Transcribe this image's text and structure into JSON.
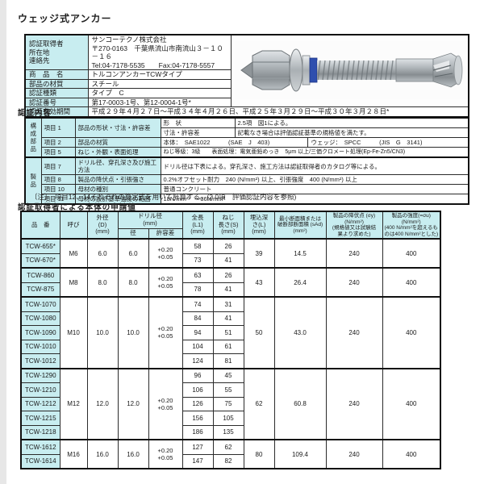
{
  "page_title": "ウェッジ式アンカー",
  "colors": {
    "accent_cyan": "#c8edf0",
    "border": "#2b2b2b"
  },
  "header_table": {
    "holder": {
      "labels": [
        "認証取得者",
        "所在地",
        "連絡先"
      ],
      "values": [
        "サンコーテクノ株式会社",
        "〒270-0163　千葉県流山市南流山３－１０－１６",
        "Tel:04-7178-5535　　Fax:04-7178-5557"
      ]
    },
    "rows": [
      {
        "label": "商　品　名",
        "value": "トルコンアンカーTCWタイプ"
      },
      {
        "label": "部品の材質",
        "value": "スチール"
      },
      {
        "label": "認証種類",
        "value": "タイプ　C"
      },
      {
        "label": "認証番号",
        "value": "第17-0003-1号、第12-0004-1号*"
      }
    ],
    "validity": {
      "label": "認証有効期間",
      "value": "平成２９年４月２７日～平成３４年４月２６日、平成２５年３月２９日～平成３０年３月２８日*"
    }
  },
  "cert_content": {
    "heading": "認証内容",
    "group1": "構成部品",
    "group2": "製品",
    "item1": {
      "no": "項目 1",
      "name": "部品の形状・寸法・許容差",
      "sub1_label": "形　状",
      "sub1_value": "2.5項　図1による。",
      "sub2_label": "寸法・許容差",
      "sub2_value": "記載なき場合は評価認証基準の規格値を満たす。"
    },
    "item2": {
      "no": "項目 2",
      "name": "部品の材質",
      "value_left": "本体：　SAE1022　　　(SAE　J　403)",
      "value_right": "ウェッジ：　SPCC　　　(JIS　G　3141)"
    },
    "item5": {
      "no": "項目 5",
      "name": "ねじ・外観・表面処理",
      "value": "ねじ等級：3級　　表面処理：電気亜鉛めっき　5μm 以上/三価クロメート処理(Ep-Fe-Zn5/CN3)"
    },
    "item7": {
      "no": "項目 7",
      "name": "ドリル径、穿孔深さ及び施工方法",
      "value": "ドリル径は下表による。穿孔深さ、施工方法は認証取得者のカタログ等による。"
    },
    "item8": {
      "no": "項目 8",
      "name": "製品の降伏点・引張強さ",
      "value": "0.2%オフセット耐力　240 (N/mm²) 以上、引張強度　400 (N/mm²) 以上"
    },
    "item10": {
      "no": "項目 10",
      "name": "母材の種別",
      "value": "普通コンクリート"
    },
    "item11": {
      "no": "項目 11",
      "name": "母材の設計基準強度の範囲",
      "value": "18N/mm²　～36N/mm²"
    }
  },
  "note": "〔注〕　項目12、14それぞれの算定式を用いて計算する。(2.0項　評価認証内容を参照)",
  "spec_section": {
    "heading": "認証取得者による本体の申請値",
    "headers": {
      "model": "品　番",
      "size": "呼び",
      "outer": "外径\n(D)\n(mm)",
      "drill_group": "ドリル径\n(mm)",
      "drill_d": "径",
      "drill_tol": "許容差",
      "length": "全長\n(L1)\n(mm)",
      "thread": "ねじ\n長さ(S)\n(mm)",
      "embed": "埋込深\nさ(L)\n(mm)",
      "area": "最小断面積または\n破断部断面積 (sAd)\n(mm²)",
      "yield": "製品の降伏点 (σy)\n(N/mm²)\n(規格値又は試験結\n果より求めた)",
      "strength": "製品の強度(=σu)\n(N/mm²)\n(400 N/mm²を超えるも\nのは400 N/mm²とした)"
    },
    "groups": [
      {
        "size": "M6",
        "outer": "6.0",
        "drill": "6.0",
        "tol": "+0.20\n+0.05",
        "embed": "39",
        "area": "14.5",
        "yield": "240",
        "strength": "400",
        "products": [
          {
            "model": "TCW-655*",
            "length": "58",
            "thread": "26"
          },
          {
            "model": "TCW-670*",
            "length": "73",
            "thread": "41"
          }
        ]
      },
      {
        "size": "M8",
        "outer": "8.0",
        "drill": "8.0",
        "tol": "+0.20\n+0.05",
        "embed": "43",
        "area": "26.4",
        "yield": "240",
        "strength": "400",
        "products": [
          {
            "model": "TCW-860",
            "length": "63",
            "thread": "26"
          },
          {
            "model": "TCW-875",
            "length": "78",
            "thread": "41"
          }
        ]
      },
      {
        "size": "M10",
        "outer": "10.0",
        "drill": "10.0",
        "tol": "+0.20\n+0.05",
        "embed": "50",
        "area": "43.0",
        "yield": "240",
        "strength": "400",
        "products": [
          {
            "model": "TCW-1070",
            "length": "74",
            "thread": "31"
          },
          {
            "model": "TCW-1080",
            "length": "84",
            "thread": "41"
          },
          {
            "model": "TCW-1090",
            "length": "94",
            "thread": "51"
          },
          {
            "model": "TCW-1010",
            "length": "104",
            "thread": "61"
          },
          {
            "model": "TCW-1012",
            "length": "124",
            "thread": "81"
          }
        ]
      },
      {
        "size": "M12",
        "outer": "12.0",
        "drill": "12.0",
        "tol": "+0.20\n+0.05",
        "embed": "62",
        "area": "60.8",
        "yield": "240",
        "strength": "400",
        "products": [
          {
            "model": "TCW-1290",
            "length": "96",
            "thread": "45"
          },
          {
            "model": "TCW-1210",
            "length": "106",
            "thread": "55"
          },
          {
            "model": "TCW-1212",
            "length": "126",
            "thread": "75"
          },
          {
            "model": "TCW-1215",
            "length": "156",
            "thread": "105"
          },
          {
            "model": "TCW-1218",
            "length": "186",
            "thread": "135"
          }
        ]
      },
      {
        "size": "M16",
        "outer": "16.0",
        "drill": "16.0",
        "tol": "+0.20\n+0.05",
        "embed": "80",
        "area": "109.4",
        "yield": "240",
        "strength": "400",
        "products": [
          {
            "model": "TCW-1612",
            "length": "127",
            "thread": "62"
          },
          {
            "model": "TCW-1614",
            "length": "147",
            "thread": "82"
          }
        ]
      }
    ]
  }
}
